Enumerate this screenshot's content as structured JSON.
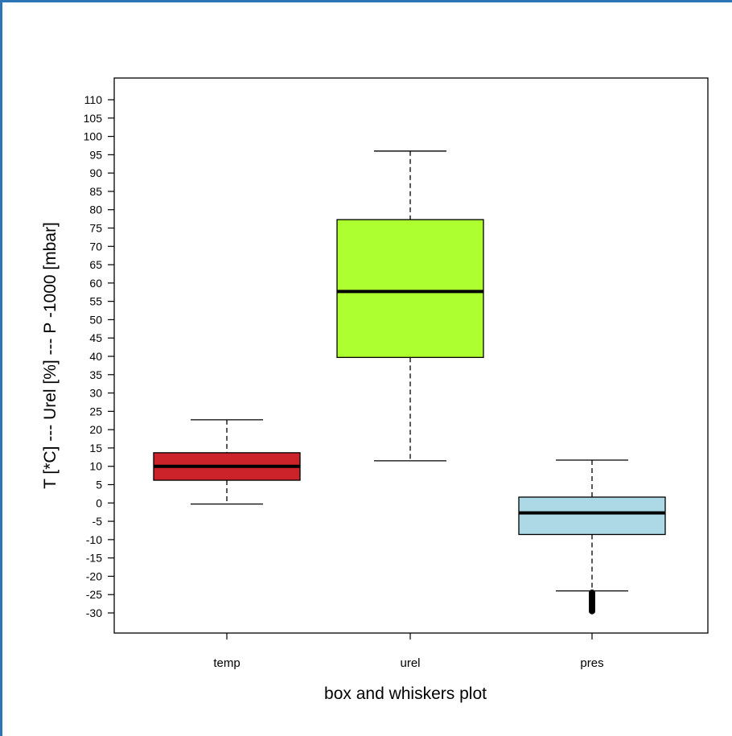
{
  "chart_data": {
    "type": "box",
    "xlabel": "box and whiskers plot",
    "ylabel": "T [*C] --- Urel [%] --- P -1000 [mbar]",
    "ylim": [
      -35,
      115
    ],
    "yticks": [
      110,
      105,
      100,
      95,
      90,
      85,
      80,
      75,
      70,
      65,
      60,
      55,
      50,
      45,
      40,
      35,
      30,
      25,
      20,
      15,
      10,
      5,
      0,
      -5,
      -10,
      -15,
      -20,
      -25,
      -30
    ],
    "categories": [
      "temp",
      "urel",
      "pres"
    ],
    "boxes": [
      {
        "name": "temp",
        "whisker_low": -0.3,
        "q1": 6.2,
        "median": 10.0,
        "q3": 13.7,
        "whisker_high": 22.7,
        "outliers": [],
        "color": "#cc2229"
      },
      {
        "name": "urel",
        "whisker_low": 11.5,
        "q1": 39.7,
        "median": 57.7,
        "q3": 77.3,
        "whisker_high": 96.0,
        "outliers": [],
        "color": "#adff2f"
      },
      {
        "name": "pres",
        "whisker_low": -24.0,
        "q1": -8.6,
        "median": -2.7,
        "q3": 1.6,
        "whisker_high": 11.7,
        "outliers": [
          -24.5,
          -25.0,
          -25.5,
          -26.0,
          -26.5,
          -27.0,
          -27.5,
          -28.0,
          -28.5,
          -29.0,
          -29.5
        ],
        "color": "#add8e6"
      }
    ],
    "grid": false,
    "legend": "none"
  }
}
